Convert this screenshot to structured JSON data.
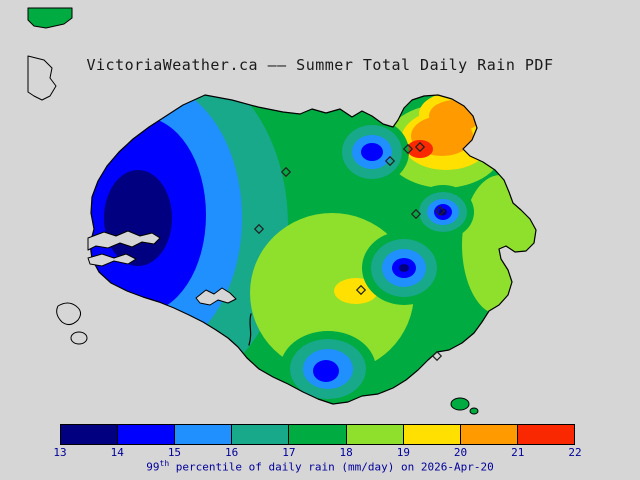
{
  "title": "VictoriaWeather.ca —— Summer Total Daily Rain PDF",
  "map": {
    "ocean_color": "#d6d6d6",
    "coastline_color": "#000000",
    "marker_color": "#222222",
    "markers": [
      [
        286,
        172
      ],
      [
        390,
        161
      ],
      [
        408,
        149
      ],
      [
        420,
        147
      ],
      [
        416,
        214
      ],
      [
        440,
        211
      ],
      [
        259,
        229
      ],
      [
        361,
        290
      ],
      [
        437,
        356
      ]
    ]
  },
  "colorbar": {
    "tick_labels": [
      "13",
      "14",
      "15",
      "16",
      "17",
      "18",
      "19",
      "20",
      "21",
      "22"
    ],
    "segment_colors": [
      "#000080",
      "#0000ff",
      "#2090ff",
      "#18a88a",
      "#00ab41",
      "#8fe02c",
      "#ffe000",
      "#ff9b00",
      "#fa2800"
    ],
    "tick_color": "#000099",
    "caption_color": "#000099",
    "caption_prefix": "99",
    "caption_sup": "th",
    "caption_rest": " percentile of daily rain (mm/day) on 2026-Apr-20"
  },
  "chart_data": {
    "type": "heatmap",
    "title": "VictoriaWeather.ca —— Summer Total Daily Rain PDF",
    "statistic": "99th percentile of daily rain",
    "units": "mm/day",
    "valid_date": "2026-Apr-20",
    "scale_min": 13,
    "scale_max": 22,
    "scale_ticks": [
      13,
      14,
      15,
      16,
      17,
      18,
      19,
      20,
      21,
      22
    ],
    "scale_colors": [
      "#000080",
      "#0000ff",
      "#2090ff",
      "#18a88a",
      "#00ab41",
      "#8fe02c",
      "#ffe000",
      "#ff9b00",
      "#fa2800"
    ],
    "legend_position": "bottom",
    "station_marker_count": 9,
    "features": [
      {
        "area": "west of map (large cool pool)",
        "approx_value": "13-15"
      },
      {
        "area": "northeast hotspot with red core",
        "approx_value": "21-22"
      },
      {
        "area": "central / southern interior",
        "approx_value": "18-20"
      },
      {
        "area": "embedded cool spots (NE, E, C, S)",
        "approx_value": "14-16"
      }
    ]
  }
}
